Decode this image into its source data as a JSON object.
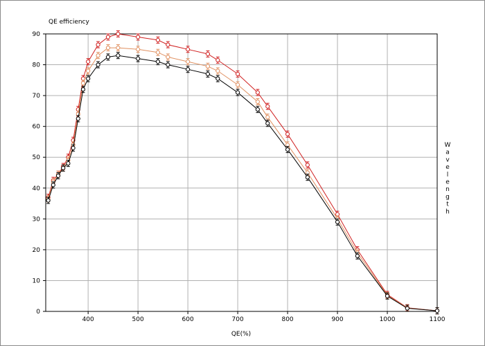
{
  "chart_data": {
    "type": "line",
    "title": "",
    "ylabel": "QE efficiency",
    "xlabel": "QE(%)",
    "right_label": "Wavelength",
    "xlim": [
      315,
      1100
    ],
    "ylim": [
      0,
      90
    ],
    "xticks": [
      400,
      500,
      600,
      700,
      800,
      900,
      1000,
      1100
    ],
    "yticks": [
      0,
      10,
      20,
      30,
      40,
      50,
      60,
      70,
      80,
      90
    ],
    "grid": true,
    "legend": "none",
    "x": [
      320,
      330,
      340,
      350,
      360,
      370,
      380,
      390,
      400,
      420,
      440,
      460,
      500,
      540,
      560,
      600,
      640,
      660,
      700,
      740,
      760,
      800,
      840,
      900,
      940,
      1000,
      1040,
      1100
    ],
    "series": [
      {
        "color": "#d02020",
        "values": [
          37,
          42.5,
          44.5,
          47,
          50,
          55.5,
          65.5,
          75.5,
          81,
          86.5,
          89,
          90,
          89,
          88,
          86.5,
          85,
          83.5,
          81.5,
          77,
          71,
          66.5,
          57.5,
          47.5,
          31.5,
          20,
          5.5,
          1.2,
          0.2
        ]
      },
      {
        "color": "#e09060",
        "values": [
          36.5,
          42,
          44.5,
          46.5,
          49,
          54,
          64,
          74,
          78,
          83,
          85.5,
          85.5,
          85,
          84,
          82.5,
          81,
          79.5,
          78,
          73.5,
          68,
          63,
          54,
          45,
          30,
          19,
          5.2,
          1.1,
          0.2
        ]
      },
      {
        "color": "#000000",
        "values": [
          36,
          41,
          44,
          46.5,
          48,
          53,
          62.5,
          72,
          75.5,
          80,
          82.5,
          83,
          82,
          81,
          80,
          78.5,
          77,
          75.5,
          71,
          65.5,
          61,
          52.5,
          43.5,
          29,
          18,
          5,
          1,
          0.2
        ]
      }
    ]
  }
}
